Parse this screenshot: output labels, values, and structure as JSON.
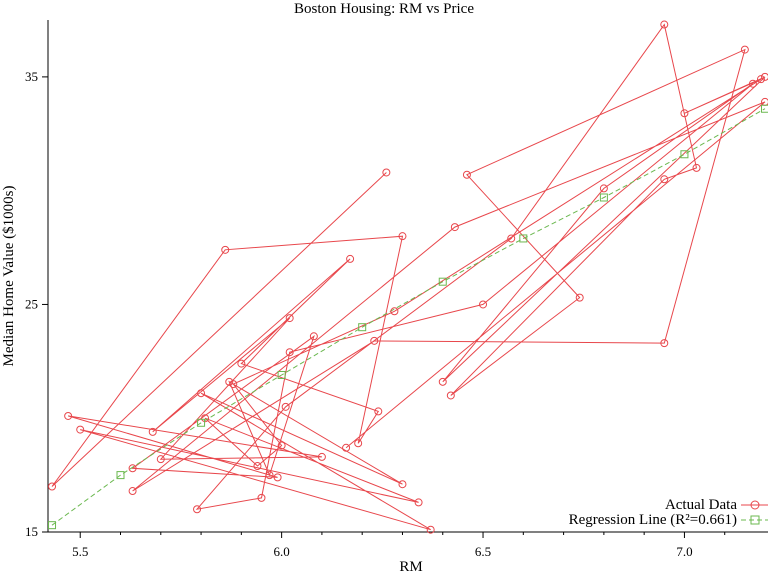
{
  "chart_data": {
    "type": "line",
    "title": "Boston Housing: RM vs Price",
    "xlabel": "RM",
    "ylabel": "Median Home Value ($1000s)",
    "xlim": [
      5.42,
      7.2
    ],
    "ylim": [
      15,
      37.5
    ],
    "x_ticks": [
      5.5,
      6.0,
      6.5,
      7.0
    ],
    "x_tick_labels": [
      "5.5",
      "6.0",
      "6.5",
      "7.0"
    ],
    "x_minor_ticks": [
      5.6,
      5.7,
      5.8,
      5.9,
      6.1,
      6.2,
      6.3,
      6.4,
      6.6,
      6.7,
      6.8,
      6.9,
      7.1
    ],
    "y_ticks": [
      15,
      25,
      35
    ],
    "y_tick_labels": [
      "15",
      "25",
      "35"
    ],
    "legend_position": "bottom-right",
    "series": [
      {
        "name": "Actual Data",
        "color": "#e8474c",
        "marker": "circle",
        "style": "solid",
        "x": [
          6.26,
          5.43,
          5.86,
          6.3,
          6.19,
          6.24,
          5.9,
          6.17,
          5.68,
          6.02,
          5.7,
          6.1,
          5.47,
          5.99,
          5.63,
          6.08,
          5.97,
          5.87,
          6.3,
          5.8,
          6.37,
          5.5,
          6.34,
          5.81,
          5.94,
          6.0,
          5.88,
          6.28,
          7.19,
          7.0,
          7.2,
          6.4,
          6.8,
          7.17,
          6.5,
          6.02,
          5.95,
          5.79,
          6.01,
          6.57,
          6.95,
          7.03,
          6.95,
          6.42,
          6.74,
          6.46,
          7.15,
          6.95,
          6.23,
          5.63,
          6.43,
          7.2,
          6.16
        ],
        "y": [
          30.8,
          17.0,
          27.4,
          28.0,
          18.9,
          20.3,
          22.4,
          27.0,
          19.4,
          24.4,
          18.2,
          18.3,
          20.1,
          17.4,
          17.8,
          23.6,
          17.5,
          21.6,
          17.1,
          21.1,
          15.1,
          19.5,
          16.3,
          20.0,
          17.9,
          18.8,
          21.5,
          24.7,
          34.9,
          33.4,
          35.0,
          21.6,
          30.1,
          34.7,
          25.0,
          22.9,
          16.5,
          16.0,
          20.5,
          27.9,
          37.3,
          31.0,
          30.5,
          21.0,
          25.3,
          30.7,
          36.2,
          23.3,
          23.4,
          16.8,
          28.4,
          33.9,
          18.7
        ]
      },
      {
        "name": "Regression Line (R²=0.661)",
        "color": "#6bb84f",
        "marker": "square",
        "style": "dashed",
        "x": [
          5.43,
          5.6,
          5.8,
          6.0,
          6.2,
          6.4,
          6.6,
          6.8,
          7.0,
          7.2
        ],
        "y": [
          15.3,
          17.5,
          19.8,
          21.9,
          24.0,
          26.0,
          27.9,
          29.7,
          31.6,
          33.6
        ]
      }
    ]
  }
}
